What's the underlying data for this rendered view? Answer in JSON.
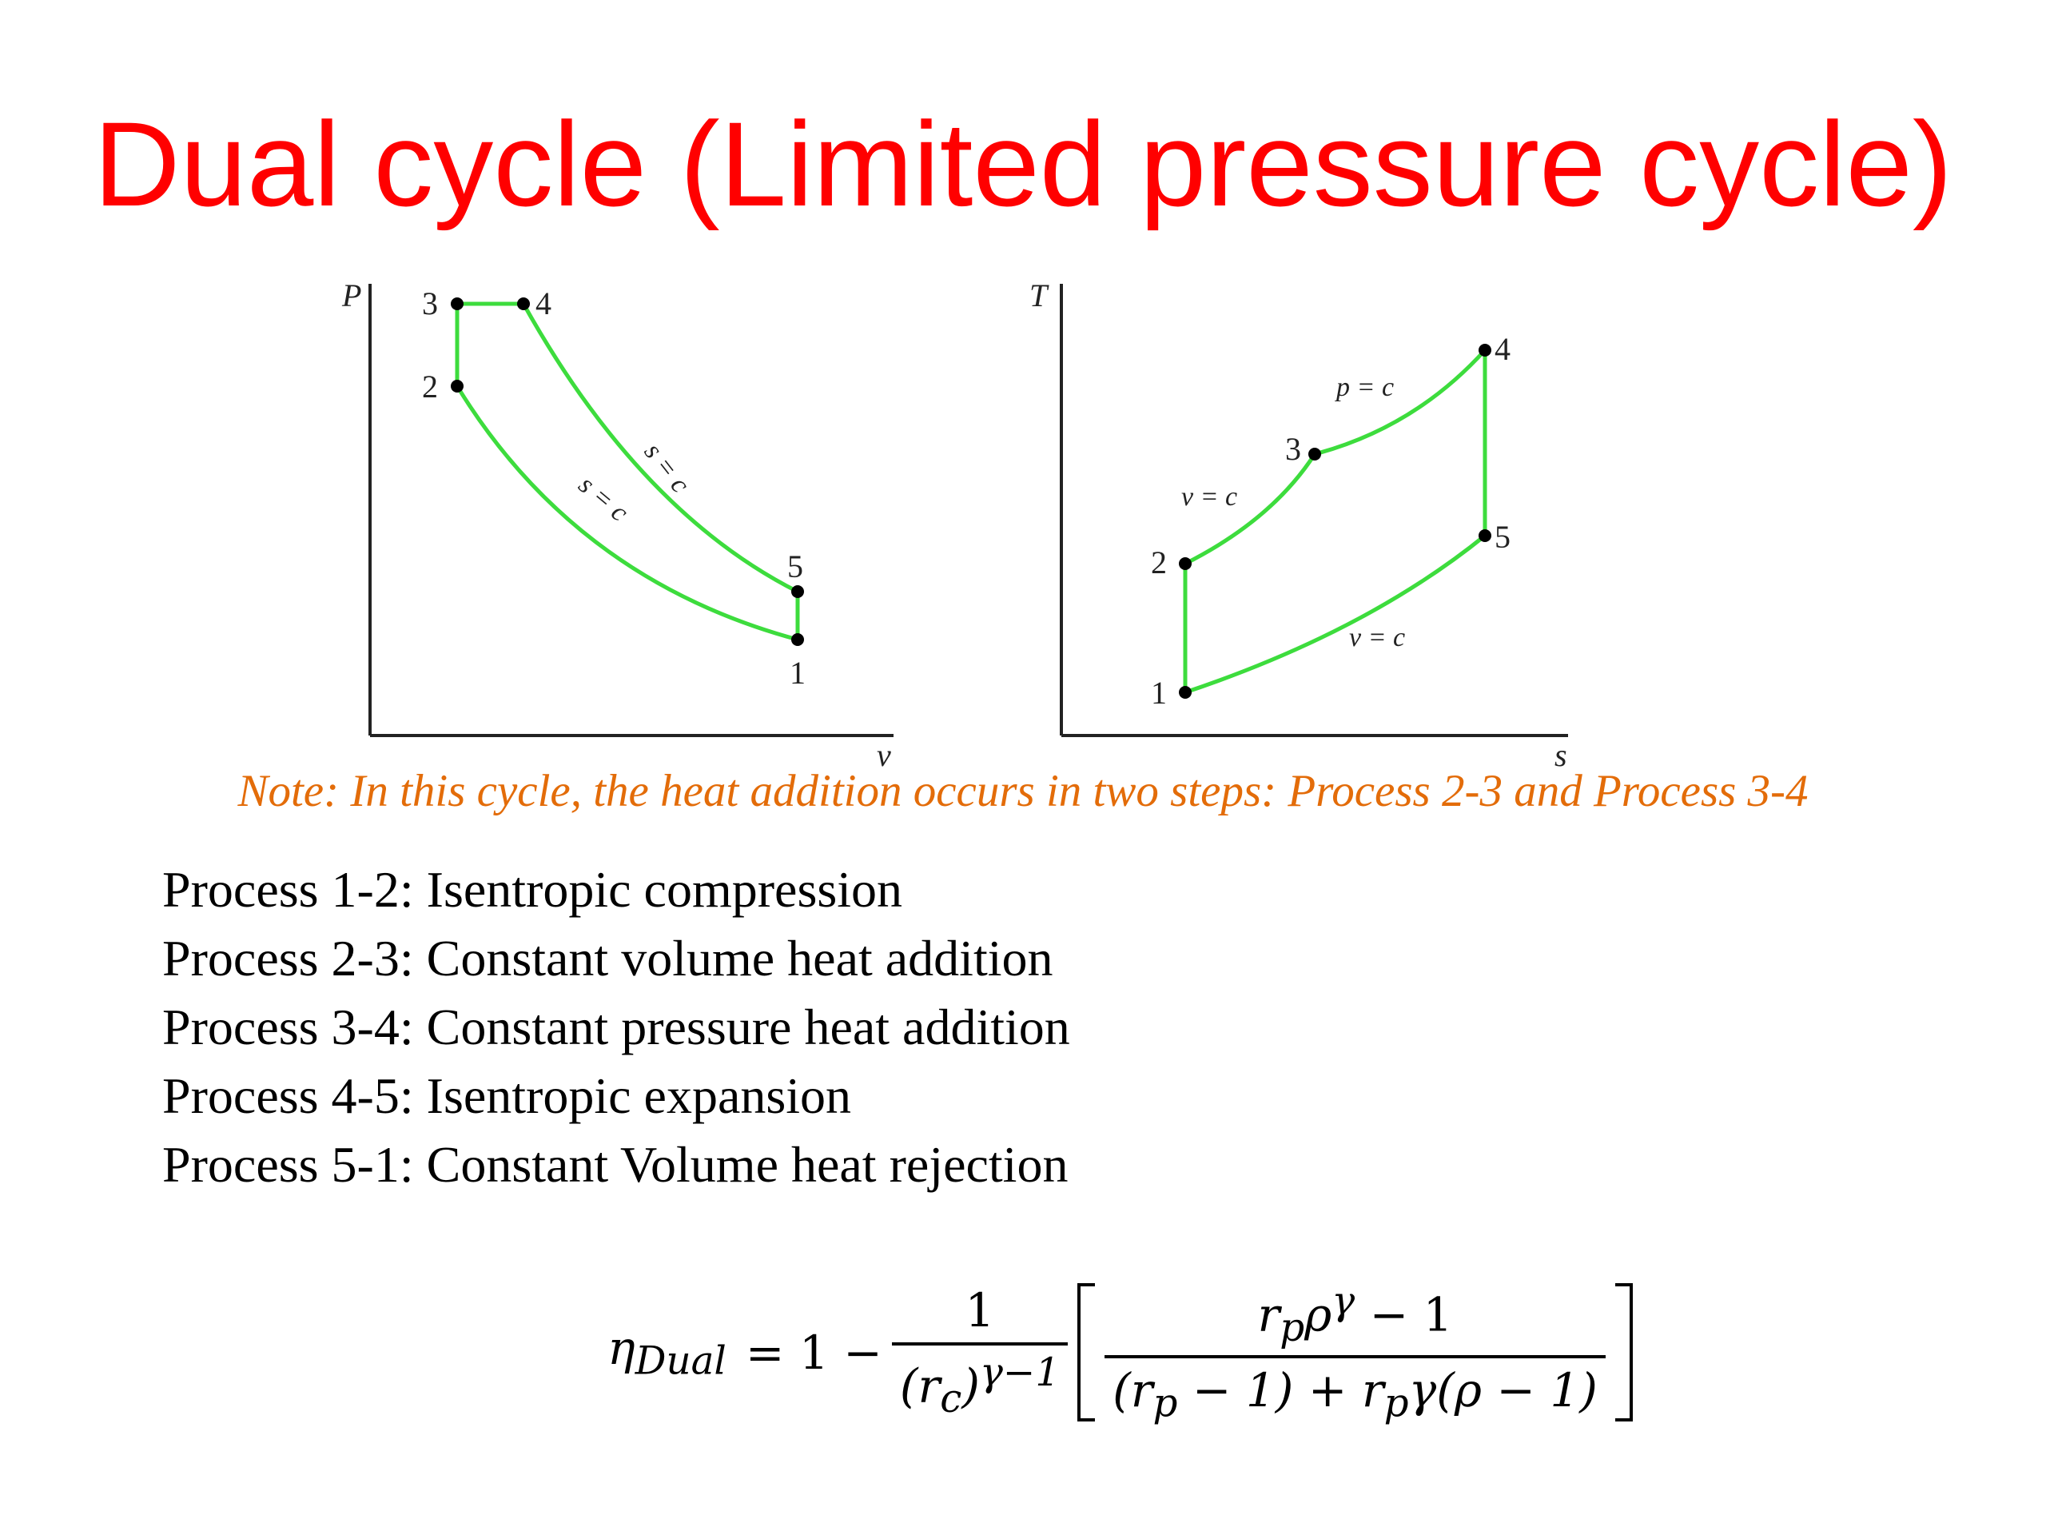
{
  "title": "Dual cycle (Limited pressure cycle)",
  "colors": {
    "title": "#ff0000",
    "note": "#e36c09",
    "cycle_line": "#3ddc3d",
    "axis": "#222222",
    "text": "#000000"
  },
  "pv_diagram": {
    "y_axis_label": "P",
    "x_axis_label": "v",
    "points": [
      "1",
      "2",
      "3",
      "4",
      "5"
    ],
    "curve_labels": [
      "s = c",
      "s = c"
    ]
  },
  "ts_diagram": {
    "y_axis_label": "T",
    "x_axis_label": "s",
    "points": [
      "1",
      "2",
      "3",
      "4",
      "5"
    ],
    "curve_labels": [
      "v = c",
      "p = c",
      "v = c"
    ]
  },
  "note": "Note: In this cycle, the heat addition occurs in two steps: Process 2-3 and Process 3-4",
  "processes": [
    "Process 1-2: Isentropic compression",
    "Process 2-3: Constant volume heat addition",
    "Process 3-4: Constant pressure heat addition",
    "Process 4-5: Isentropic expansion",
    "Process 5-1: Constant Volume heat rejection"
  ],
  "formula": {
    "lhs_symbol": "η",
    "lhs_subscript": "Dual",
    "equals_one_minus": "= 1 −",
    "frac1_num": "1",
    "frac1_den_base": "(r",
    "frac1_den_sub": "c",
    "frac1_den_close": ")",
    "frac1_den_exp": "γ−1",
    "frac2_num_r": "r",
    "frac2_num_sub": "p",
    "frac2_num_rho": "ρ",
    "frac2_num_exp": "γ",
    "frac2_num_tail": " − 1",
    "frac2_den_a": "(r",
    "frac2_den_a_sub": "p",
    "frac2_den_b": " − 1) + r",
    "frac2_den_b_sub": "p",
    "frac2_den_c": "γ(ρ − 1)"
  }
}
